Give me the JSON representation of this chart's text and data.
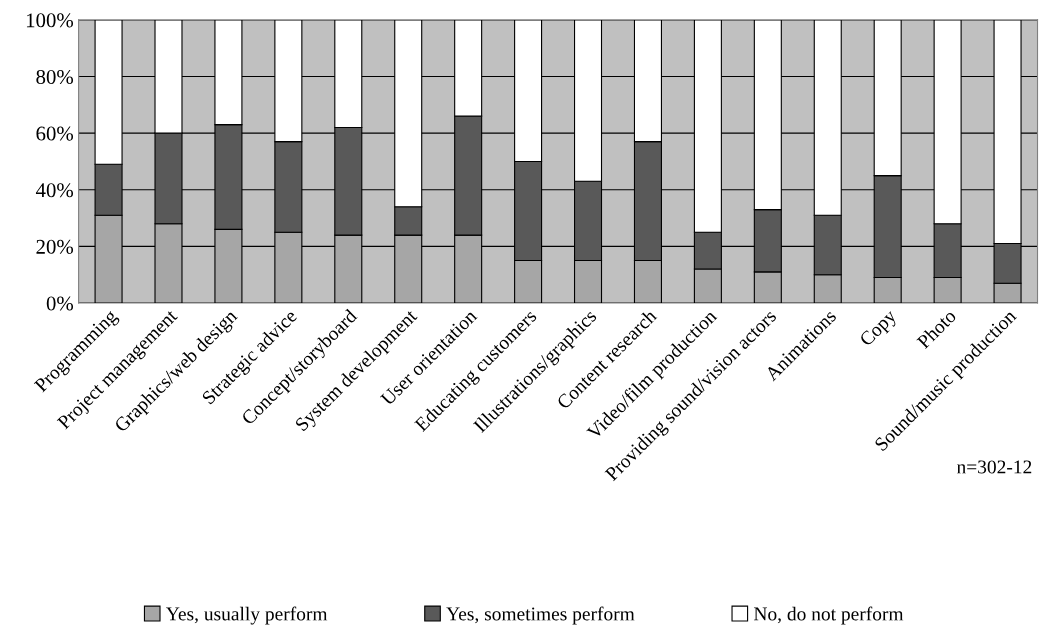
{
  "chart_data": {
    "type": "bar",
    "stacked": true,
    "categories": [
      "Programming",
      "Project management",
      "Graphics/web design",
      "Strategic advice",
      "Concept/storyboard",
      "System development",
      "User orientation",
      "Educating customers",
      "Illustrations/graphics",
      "Content research",
      "Video/film production",
      "Providing sound/vision actors",
      "Animations",
      "Copy",
      "Photo",
      "Sound/music production"
    ],
    "series": [
      {
        "name": "Yes, usually perform",
        "color": "#a6a6a6",
        "values": [
          31,
          28,
          26,
          25,
          24,
          24,
          24,
          15,
          15,
          15,
          12,
          11,
          10,
          9,
          9,
          7
        ]
      },
      {
        "name": "Yes, sometimes perform",
        "color": "#595959",
        "values": [
          18,
          32,
          37,
          32,
          38,
          10,
          42,
          35,
          28,
          42,
          13,
          22,
          21,
          36,
          19,
          14
        ]
      },
      {
        "name": "No, do not perform",
        "color": "#ffffff",
        "values": [
          51,
          40,
          37,
          43,
          38,
          66,
          34,
          50,
          57,
          43,
          75,
          67,
          69,
          55,
          72,
          79
        ]
      }
    ],
    "ylim": [
      0,
      100
    ],
    "yticks": [
      {
        "value": 0,
        "label": "0%"
      },
      {
        "value": 20,
        "label": "20%"
      },
      {
        "value": 40,
        "label": "40%"
      },
      {
        "value": 60,
        "label": "60%"
      },
      {
        "value": 80,
        "label": "80%"
      },
      {
        "value": 100,
        "label": "100%"
      }
    ],
    "grid": "y",
    "legend": "bottom",
    "annotations": [
      "n=302-12"
    ]
  }
}
